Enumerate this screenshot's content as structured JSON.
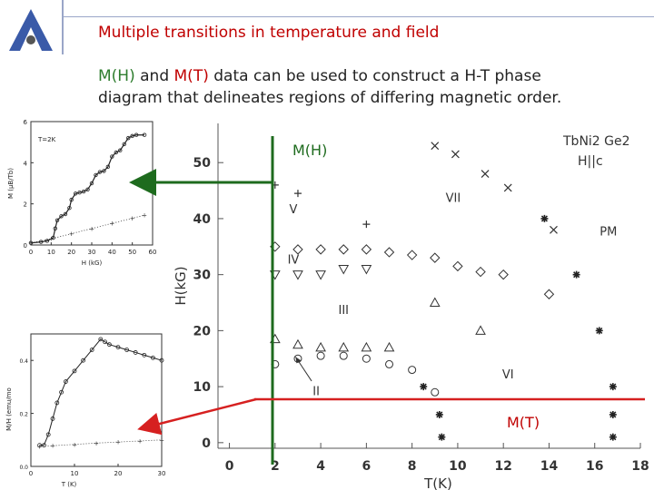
{
  "header": {
    "title": "Multiple transitions in temperature and field"
  },
  "body": {
    "line1_a": "M(H)",
    "line1_b": " and ",
    "line1_c": "M(T)",
    "line1_d": " data can be used to construct a H-T phase",
    "line2": "diagram that delineates regions of differing magnetic order."
  },
  "annotations": {
    "mh_label": "M(H)",
    "mt_label": "M(T)"
  },
  "colors": {
    "title": "#c00000",
    "green": "#2e7d2e",
    "red": "#d62020"
  },
  "chart_data": [
    {
      "type": "line",
      "panel": "inset-MH",
      "annotation": "T=2K",
      "xlabel": "H (kG)",
      "ylabel": "M (μB/Tb)",
      "xlim": [
        0,
        60
      ],
      "ylim": [
        0,
        6
      ],
      "xticks": [
        0,
        10,
        20,
        30,
        40,
        50,
        60
      ],
      "yticks": [
        0,
        2,
        4,
        6
      ],
      "series": [
        {
          "x": [
            0,
            5,
            8,
            11,
            12,
            13,
            15,
            17,
            19,
            20,
            22,
            24,
            26,
            28,
            30,
            32,
            34,
            36,
            38,
            40,
            42,
            44,
            46,
            48,
            50,
            52,
            56
          ],
          "y": [
            0.1,
            0.15,
            0.2,
            0.35,
            0.8,
            1.2,
            1.4,
            1.5,
            1.8,
            2.2,
            2.5,
            2.55,
            2.6,
            2.7,
            3.0,
            3.4,
            3.55,
            3.6,
            3.8,
            4.3,
            4.5,
            4.6,
            4.9,
            5.2,
            5.3,
            5.35,
            5.35
          ]
        },
        {
          "x": [
            0,
            10,
            20,
            30,
            40,
            50,
            56
          ],
          "y": [
            0.1,
            0.3,
            0.55,
            0.8,
            1.05,
            1.3,
            1.45
          ]
        }
      ]
    },
    {
      "type": "line",
      "panel": "inset-MT",
      "xlabel": "T (K)",
      "ylabel": "M/H (emu/mo",
      "xlim": [
        0,
        30
      ],
      "ylim": [
        0,
        0.5
      ],
      "xticks": [
        0,
        10,
        20,
        30
      ],
      "yticks": [
        0.0,
        0.2,
        0.4
      ],
      "series": [
        {
          "x": [
            2,
            3,
            4,
            5,
            6,
            7,
            8,
            10,
            12,
            14,
            16,
            17,
            18,
            20,
            22,
            24,
            26,
            28,
            30
          ],
          "y": [
            0.08,
            0.08,
            0.12,
            0.18,
            0.24,
            0.28,
            0.32,
            0.36,
            0.4,
            0.44,
            0.48,
            0.47,
            0.46,
            0.45,
            0.44,
            0.43,
            0.42,
            0.41,
            0.4
          ]
        },
        {
          "x": [
            2,
            5,
            10,
            15,
            20,
            25,
            30
          ],
          "y": [
            0.075,
            0.078,
            0.083,
            0.088,
            0.092,
            0.096,
            0.1
          ]
        }
      ]
    },
    {
      "type": "scatter",
      "panel": "phase-diagram",
      "title": "TbNi2 Ge2",
      "subtitle": "H||c",
      "xlabel": "T(K)",
      "ylabel": "H(kG)",
      "xlim": [
        -0.5,
        18
      ],
      "ylim": [
        -1,
        57
      ],
      "xticks": [
        0,
        2,
        4,
        6,
        8,
        10,
        12,
        14,
        16,
        18
      ],
      "yticks": [
        0,
        10,
        20,
        30,
        40,
        50
      ],
      "regions": [
        {
          "label": "VII",
          "T": 9.8,
          "H": 43
        },
        {
          "label": "PM",
          "T": 16.6,
          "H": 37
        },
        {
          "label": "V",
          "T": 2.8,
          "H": 41
        },
        {
          "label": "IV",
          "T": 2.8,
          "H": 32
        },
        {
          "label": "III",
          "T": 5.0,
          "H": 23
        },
        {
          "label": "II",
          "T": 3.8,
          "H": 8.5
        },
        {
          "label": "VI",
          "T": 12.2,
          "H": 11.5
        }
      ],
      "series": [
        {
          "marker": "x",
          "T": [
            9.0,
            9.9,
            11.2,
            12.2,
            14.2
          ],
          "H": [
            53,
            51.5,
            48,
            45.5,
            38
          ]
        },
        {
          "marker": "+",
          "T": [
            2,
            3,
            6
          ],
          "H": [
            46,
            44.5,
            39
          ]
        },
        {
          "marker": "diamond",
          "T": [
            2,
            3,
            4,
            5,
            6,
            7,
            8,
            9,
            10,
            11,
            12,
            14
          ],
          "H": [
            35,
            34.5,
            34.5,
            34.5,
            34.5,
            34,
            33.5,
            33,
            31.5,
            30.5,
            30,
            26.5
          ]
        },
        {
          "marker": "triangle-down",
          "T": [
            2,
            3,
            4,
            5,
            6
          ],
          "H": [
            30,
            30,
            30,
            31,
            31
          ]
        },
        {
          "marker": "triangle-up",
          "T": [
            2,
            3,
            4,
            5,
            6,
            7,
            9,
            11
          ],
          "H": [
            18.5,
            17.5,
            17,
            17,
            17,
            17,
            25,
            20
          ]
        },
        {
          "marker": "circle",
          "T": [
            2,
            3,
            4,
            5,
            6,
            7,
            8,
            9
          ],
          "H": [
            14,
            15,
            15.5,
            15.5,
            15,
            14,
            13,
            9
          ]
        },
        {
          "marker": "asterisk",
          "T": [
            13.8,
            15.2,
            16.2,
            16.8,
            8.5,
            9.2,
            16.8,
            9.3,
            16.8
          ],
          "H": [
            40,
            30,
            20,
            10,
            10,
            5,
            5,
            1,
            1
          ]
        }
      ]
    }
  ]
}
